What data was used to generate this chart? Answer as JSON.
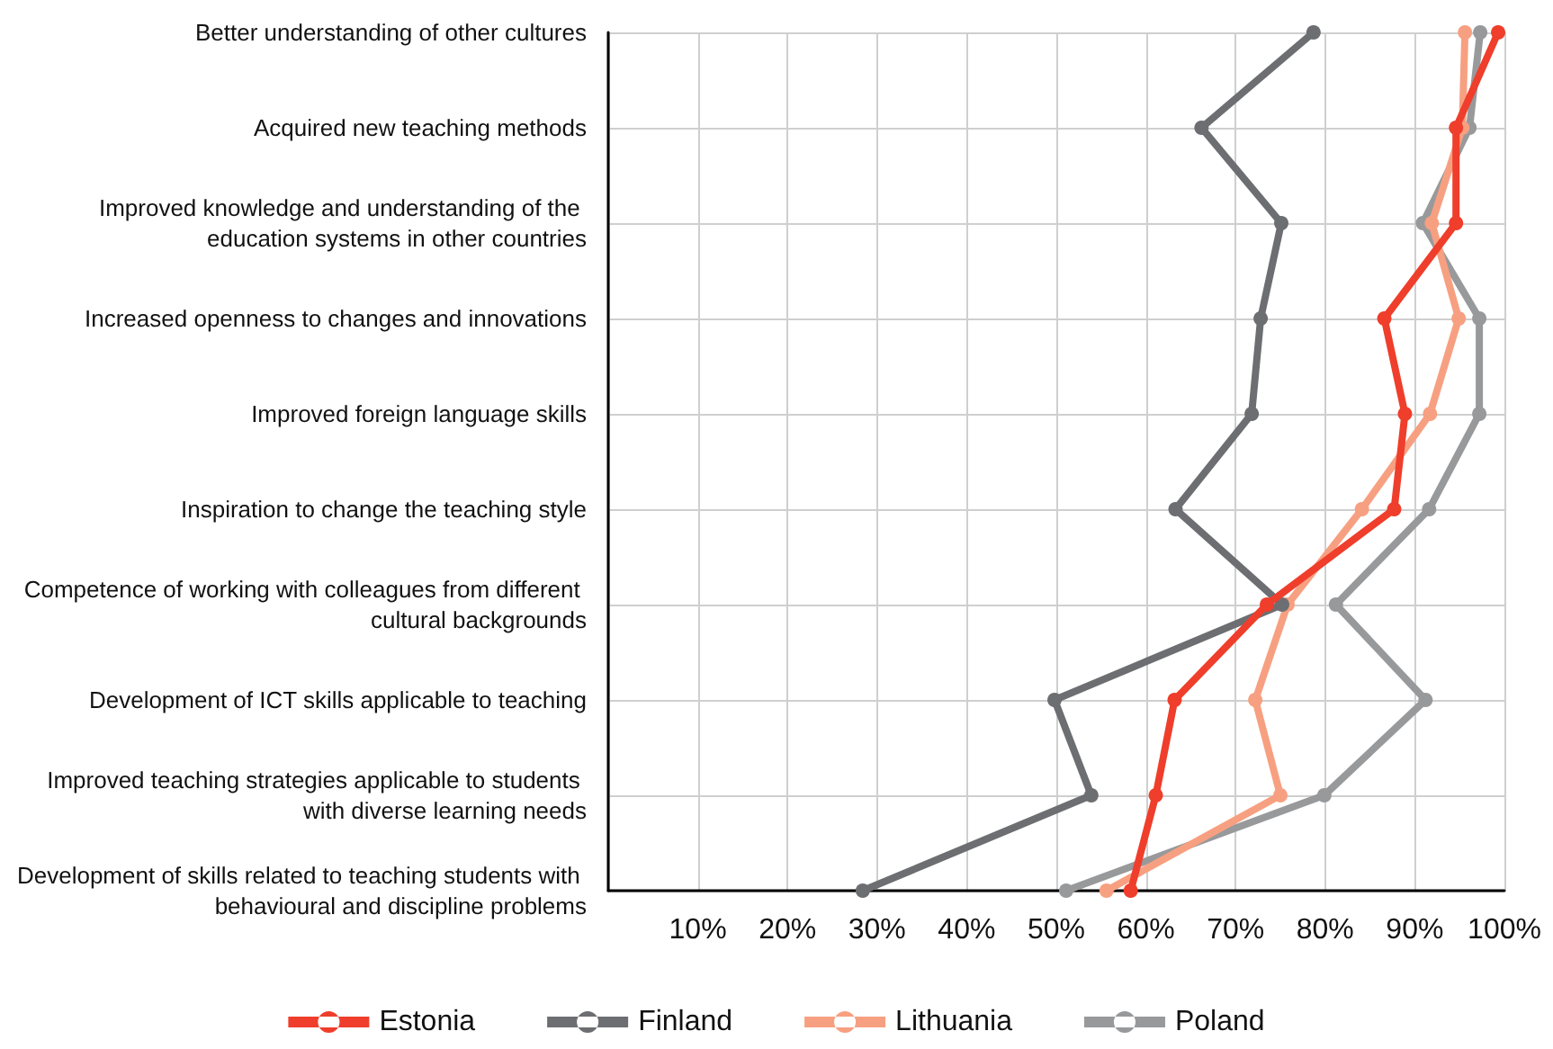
{
  "chart_data": {
    "type": "line",
    "orientation": "horizontal",
    "categories": [
      "Better understanding of other cultures",
      "Acquired new teaching methods",
      "Improved knowledge and understanding of the education systems in other countries",
      "Increased openness to changes and innovations",
      "Improved foreign language skills",
      "Inspiration to change the teaching style",
      "Competence of working with colleagues from different cultural backgrounds",
      "Development of ICT skills applicable to teaching",
      "Improved teaching strategies applicable to students with diverse learning needs",
      "Development of skills related to teaching students with behavioural and discipline problems"
    ],
    "series": [
      {
        "name": "Estonia",
        "color": "#ef3e2b",
        "values": [
          99.3,
          94.6,
          94.6,
          86.6,
          88.9,
          87.7,
          73.5,
          63.2,
          61.1,
          58.3
        ]
      },
      {
        "name": "Finland",
        "color": "#6d6e71",
        "values": [
          78.7,
          66.2,
          75.1,
          72.8,
          71.8,
          63.3,
          75.2,
          49.8,
          53.9,
          28.4
        ]
      },
      {
        "name": "Lithuania",
        "color": "#f7a081",
        "values": [
          95.6,
          95.3,
          91.9,
          94.9,
          91.7,
          84.1,
          75.8,
          72.2,
          75.0,
          55.6
        ]
      },
      {
        "name": "Poland",
        "color": "#98999b",
        "values": [
          97.3,
          96.1,
          90.9,
          97.2,
          97.2,
          91.6,
          81.2,
          91.2,
          79.9,
          51.1
        ]
      }
    ],
    "xlim": [
      0,
      100
    ],
    "xticks": [
      {
        "value": 0,
        "label": null
      },
      {
        "value": 10,
        "label": "10%"
      },
      {
        "value": 20,
        "label": "20%"
      },
      {
        "value": 30,
        "label": "30%"
      },
      {
        "value": 40,
        "label": "40%"
      },
      {
        "value": 50,
        "label": "50%"
      },
      {
        "value": 60,
        "label": "60%"
      },
      {
        "value": 70,
        "label": "70%"
      },
      {
        "value": 80,
        "label": "80%"
      },
      {
        "value": 90,
        "label": "90%"
      },
      {
        "value": 100,
        "label": "100%"
      }
    ],
    "grid": true,
    "legend": "bottom",
    "marker": "circle",
    "line_style": "solid"
  }
}
